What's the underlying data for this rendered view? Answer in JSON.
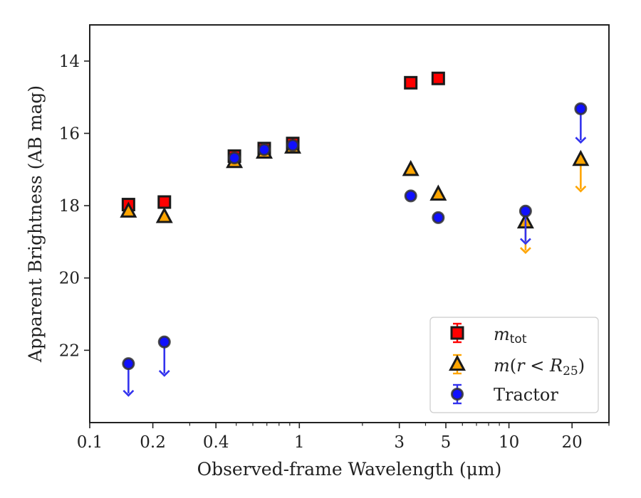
{
  "chart_data": {
    "type": "scatter",
    "title": "",
    "xlabel": "Observed-frame Wavelength (μm)",
    "ylabel": "Apparent Brightness (AB mag)",
    "xscale": "log",
    "xlim": [
      0.1,
      30
    ],
    "ylim": [
      24,
      13
    ],
    "y_inverted": true,
    "grid": false,
    "legend_position": "bottom-right",
    "x_ticks": [
      {
        "value": 0.1,
        "label": "0.1"
      },
      {
        "value": 0.2,
        "label": "0.2"
      },
      {
        "value": 0.4,
        "label": "0.4"
      },
      {
        "value": 1,
        "label": "1"
      },
      {
        "value": 3,
        "label": "3"
      },
      {
        "value": 5,
        "label": "5"
      },
      {
        "value": 10,
        "label": "10"
      },
      {
        "value": 20,
        "label": "20"
      }
    ],
    "y_ticks": [
      {
        "value": 14,
        "label": "14"
      },
      {
        "value": 16,
        "label": "16"
      },
      {
        "value": 18,
        "label": "18"
      },
      {
        "value": 20,
        "label": "20"
      },
      {
        "value": 22,
        "label": "22"
      }
    ],
    "series": [
      {
        "key": "mtot",
        "legend_label": "m_tot",
        "marker": "square",
        "face_color": "#ff0000",
        "edge_color": "#1a1a1a",
        "err_color": "#ff0000",
        "points": [
          {
            "x": 0.153,
            "y": 17.97
          },
          {
            "x": 0.227,
            "y": 17.9
          },
          {
            "x": 0.49,
            "y": 16.63
          },
          {
            "x": 0.68,
            "y": 16.42
          },
          {
            "x": 0.93,
            "y": 16.28
          },
          {
            "x": 3.4,
            "y": 14.6
          },
          {
            "x": 4.6,
            "y": 14.48
          }
        ]
      },
      {
        "key": "mr25",
        "legend_label": "m(r < R_25)",
        "marker": "triangle",
        "face_color": "#ffa500",
        "edge_color": "#1a1a1a",
        "err_color": "#ffa500",
        "points": [
          {
            "x": 0.153,
            "y": 18.15
          },
          {
            "x": 0.227,
            "y": 18.3
          },
          {
            "x": 0.49,
            "y": 16.78
          },
          {
            "x": 0.68,
            "y": 16.52
          },
          {
            "x": 0.93,
            "y": 16.38
          },
          {
            "x": 3.4,
            "y": 17.0
          },
          {
            "x": 4.6,
            "y": 17.68
          },
          {
            "x": 12.0,
            "y": 18.45,
            "upper_limit": true,
            "arrow_to": 19.3
          },
          {
            "x": 22.0,
            "y": 16.72,
            "upper_limit": true,
            "arrow_to": 17.6
          }
        ]
      },
      {
        "key": "tractor",
        "legend_label": "Tractor",
        "marker": "circle",
        "face_color": "#1010ff",
        "edge_color": "#333333",
        "err_color": "#3333ee",
        "points": [
          {
            "x": 0.153,
            "y": 22.37,
            "upper_limit": true,
            "arrow_to": 23.25
          },
          {
            "x": 0.227,
            "y": 21.77,
            "upper_limit": true,
            "arrow_to": 22.7
          },
          {
            "x": 0.49,
            "y": 16.68
          },
          {
            "x": 0.68,
            "y": 16.45
          },
          {
            "x": 0.93,
            "y": 16.33
          },
          {
            "x": 3.4,
            "y": 17.73
          },
          {
            "x": 4.6,
            "y": 18.33
          },
          {
            "x": 12.0,
            "y": 18.15,
            "upper_limit": true,
            "arrow_to": 19.05
          },
          {
            "x": 22.0,
            "y": 15.32,
            "upper_limit": true,
            "arrow_to": 16.25
          }
        ]
      }
    ]
  }
}
